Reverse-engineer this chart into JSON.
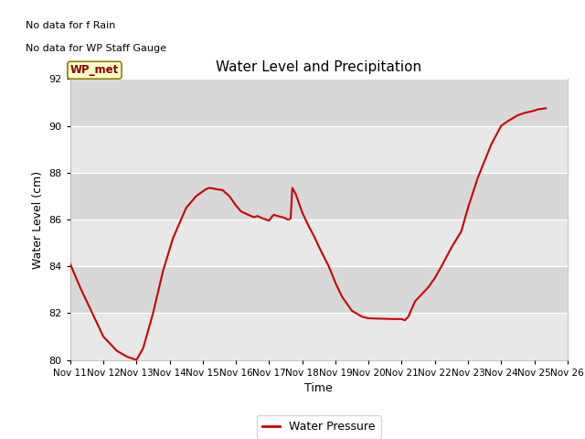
{
  "title": "Water Level and Precipitation",
  "xlabel": "Time",
  "ylabel": "Water Level (cm)",
  "legend_label": "Water Pressure",
  "no_data_text1": "No data for f Rain",
  "no_data_text2": "No data for WP Staff Gauge",
  "wp_met_label": "WP_met",
  "line_color": "#cc0000",
  "bg_light": "#e8e8e8",
  "bg_dark": "#d8d8d8",
  "ylim": [
    80,
    92
  ],
  "yticks": [
    80,
    82,
    84,
    86,
    88,
    90,
    92
  ],
  "xlim": [
    11,
    26
  ],
  "x_labels": [
    "Nov 11",
    "Nov 12",
    "Nov 13",
    "Nov 14",
    "Nov 15",
    "Nov 16",
    "Nov 17",
    "Nov 18",
    "Nov 19",
    "Nov 20",
    "Nov 21",
    "Nov 22",
    "Nov 23",
    "Nov 24",
    "Nov 25",
    "Nov 26"
  ],
  "x_data": [
    11.0,
    11.15,
    11.3,
    11.6,
    12.0,
    12.4,
    12.7,
    13.0,
    13.2,
    13.5,
    13.8,
    14.1,
    14.5,
    14.8,
    15.0,
    15.1,
    15.2,
    15.4,
    15.6,
    15.8,
    16.0,
    16.15,
    16.3,
    16.45,
    16.55,
    16.65,
    16.8,
    17.0,
    17.05,
    17.1,
    17.15,
    17.25,
    17.4,
    17.5,
    17.55,
    17.6,
    17.65,
    17.7,
    17.8,
    17.9,
    18.0,
    18.1,
    18.2,
    18.35,
    18.55,
    18.8,
    19.0,
    19.2,
    19.5,
    19.8,
    20.0,
    20.2,
    20.5,
    20.7,
    21.0,
    21.05,
    21.1,
    21.2,
    21.4,
    21.6,
    21.8,
    22.0,
    22.2,
    22.5,
    22.8,
    23.0,
    23.3,
    23.7,
    24.0,
    24.2,
    24.5,
    24.7,
    25.0,
    25.1,
    25.2,
    25.35
  ],
  "y_data": [
    84.1,
    83.6,
    83.1,
    82.2,
    81.0,
    80.4,
    80.15,
    80.0,
    80.5,
    82.0,
    83.8,
    85.2,
    86.5,
    87.0,
    87.2,
    87.3,
    87.35,
    87.3,
    87.25,
    87.0,
    86.6,
    86.35,
    86.25,
    86.15,
    86.1,
    86.15,
    86.05,
    85.95,
    86.05,
    86.15,
    86.2,
    86.15,
    86.1,
    86.05,
    86.0,
    86.0,
    86.05,
    87.35,
    87.1,
    86.7,
    86.3,
    86.0,
    85.7,
    85.3,
    84.7,
    84.0,
    83.3,
    82.7,
    82.1,
    81.85,
    81.78,
    81.77,
    81.76,
    81.75,
    81.75,
    81.72,
    81.7,
    81.85,
    82.5,
    82.8,
    83.1,
    83.5,
    84.0,
    84.8,
    85.5,
    86.5,
    87.8,
    89.2,
    90.0,
    90.2,
    90.45,
    90.55,
    90.65,
    90.7,
    90.72,
    90.75
  ]
}
